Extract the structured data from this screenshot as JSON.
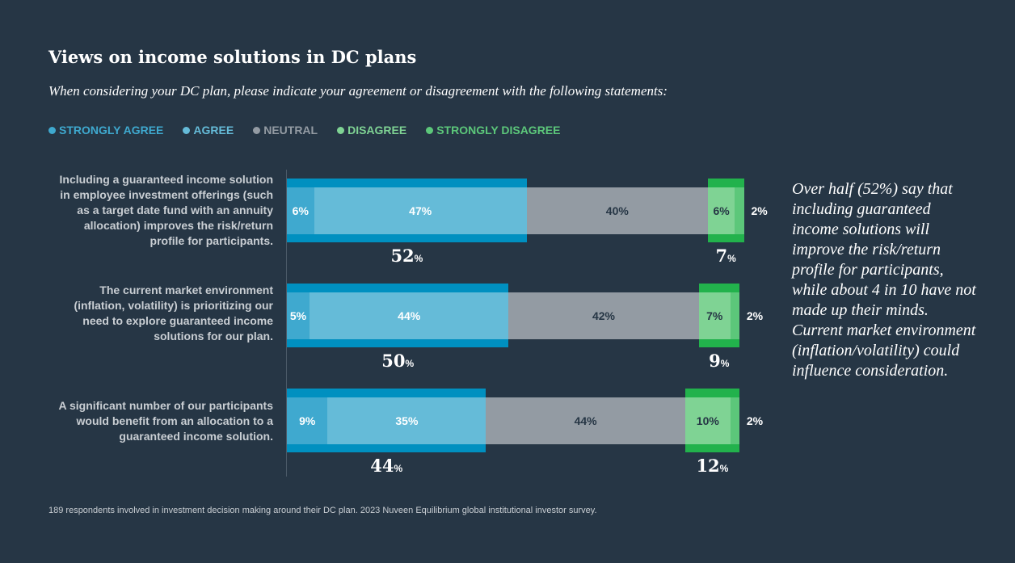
{
  "title": "Views on income solutions in DC plans",
  "subtitle": "When considering your DC plan, please indicate your agreement or disagreement with the following statements:",
  "note": "Over half (52%) say that including guaranteed income solutions will improve the risk/return profile for participants, while about 4 in 10 have not made up their minds. Current market environment (inflation/volatility) could influence consideration.",
  "footnote": "189 respondents involved in investment decision making around their DC plan. 2023 Nuveen Equilibrium global institutional investor survey.",
  "chart_data": {
    "type": "bar",
    "orientation": "horizontal-stacked",
    "legend_position": "top-left",
    "series": [
      {
        "name": "STRONGLY AGREE",
        "color": "#3fa9cf",
        "values": [
          6,
          5,
          9
        ]
      },
      {
        "name": "AGREE",
        "color": "#65bbd8",
        "values": [
          47,
          44,
          35
        ]
      },
      {
        "name": "NEUTRAL",
        "color": "#939ba3",
        "values": [
          40,
          42,
          44
        ]
      },
      {
        "name": "DISAGREE",
        "color": "#7fd394",
        "values": [
          6,
          7,
          10
        ]
      },
      {
        "name": "STRONGLY DISAGREE",
        "color": "#5cc77a",
        "values": [
          2,
          2,
          2
        ]
      }
    ],
    "categories": [
      "Including a guaranteed income solution in employee investment offerings (such as a target date fund with an annuity allocation) improves the risk/return profile for participants.",
      "The current market environment (inflation, volatility) is prioritizing our need to explore guaranteed income solutions for our plan.",
      "A significant number of our participants would benefit from an allocation to a guaranteed income solution."
    ],
    "agree_totals": [
      52,
      50,
      44
    ],
    "disagree_totals": [
      7,
      9,
      12
    ],
    "agree_band_color": "#0090c0",
    "disagree_band_color": "#22b24c",
    "unit": "%"
  }
}
